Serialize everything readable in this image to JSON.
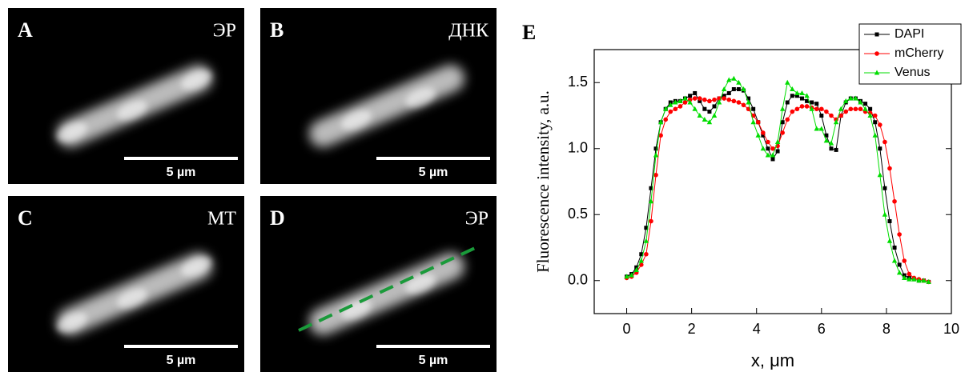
{
  "panels": [
    {
      "letter": "A",
      "label": "ЭР",
      "scale_bar": "5 µm"
    },
    {
      "letter": "B",
      "label": "ДНК",
      "scale_bar": "5 µm"
    },
    {
      "letter": "C",
      "label": "МТ",
      "scale_bar": "5 µm"
    },
    {
      "letter": "D",
      "label": "ЭР",
      "scale_bar": "5 µm"
    }
  ],
  "chart_data": {
    "type": "line",
    "panel_label": "E",
    "x_label": "x, μm",
    "y_label": "Fluorescence intensity, a.u.",
    "x": [
      0,
      0.15,
      0.3,
      0.45,
      0.6,
      0.75,
      0.9,
      1.05,
      1.2,
      1.35,
      1.5,
      1.65,
      1.8,
      1.95,
      2.1,
      2.25,
      2.4,
      2.55,
      2.7,
      2.85,
      3.0,
      3.15,
      3.3,
      3.45,
      3.6,
      3.75,
      3.9,
      4.05,
      4.2,
      4.35,
      4.5,
      4.65,
      4.8,
      4.95,
      5.1,
      5.25,
      5.4,
      5.55,
      5.7,
      5.85,
      6.0,
      6.15,
      6.3,
      6.45,
      6.6,
      6.75,
      6.9,
      7.05,
      7.2,
      7.35,
      7.5,
      7.65,
      7.8,
      7.95,
      8.1,
      8.25,
      8.4,
      8.55,
      8.7,
      8.85,
      9.0,
      9.15,
      9.3
    ],
    "series": [
      {
        "name": "DAPI",
        "color": "#000000",
        "marker": "square",
        "values": [
          0.03,
          0.05,
          0.1,
          0.2,
          0.4,
          0.7,
          1.0,
          1.2,
          1.3,
          1.35,
          1.36,
          1.36,
          1.38,
          1.4,
          1.42,
          1.36,
          1.3,
          1.28,
          1.32,
          1.38,
          1.4,
          1.42,
          1.45,
          1.45,
          1.44,
          1.38,
          1.3,
          1.2,
          1.1,
          1.0,
          0.92,
          0.98,
          1.2,
          1.35,
          1.4,
          1.4,
          1.38,
          1.36,
          1.35,
          1.34,
          1.25,
          1.1,
          1.0,
          0.99,
          1.25,
          1.35,
          1.38,
          1.38,
          1.36,
          1.34,
          1.3,
          1.2,
          1.0,
          0.7,
          0.45,
          0.25,
          0.12,
          0.04,
          0.02,
          0.01,
          0.0,
          0.0,
          -0.01
        ]
      },
      {
        "name": "mCherry",
        "color": "#ff0000",
        "marker": "circle",
        "values": [
          0.02,
          0.03,
          0.06,
          0.12,
          0.2,
          0.45,
          0.8,
          1.1,
          1.22,
          1.28,
          1.3,
          1.32,
          1.35,
          1.37,
          1.38,
          1.38,
          1.37,
          1.36,
          1.37,
          1.38,
          1.38,
          1.37,
          1.36,
          1.35,
          1.33,
          1.3,
          1.25,
          1.2,
          1.12,
          1.05,
          1.0,
          1.02,
          1.12,
          1.22,
          1.28,
          1.3,
          1.32,
          1.32,
          1.31,
          1.3,
          1.3,
          1.28,
          1.25,
          1.22,
          1.25,
          1.28,
          1.3,
          1.3,
          1.3,
          1.28,
          1.27,
          1.25,
          1.18,
          1.05,
          0.85,
          0.6,
          0.35,
          0.15,
          0.05,
          0.02,
          0.01,
          0.0,
          -0.01
        ]
      },
      {
        "name": "Venus",
        "color": "#00dd00",
        "marker": "triangle",
        "values": [
          0.03,
          0.04,
          0.08,
          0.15,
          0.3,
          0.6,
          0.95,
          1.2,
          1.3,
          1.33,
          1.35,
          1.36,
          1.38,
          1.35,
          1.3,
          1.25,
          1.22,
          1.2,
          1.25,
          1.35,
          1.45,
          1.52,
          1.53,
          1.5,
          1.45,
          1.35,
          1.2,
          1.1,
          1.0,
          0.95,
          0.95,
          1.05,
          1.3,
          1.5,
          1.45,
          1.42,
          1.42,
          1.4,
          1.3,
          1.15,
          1.15,
          1.06,
          1.04,
          1.2,
          1.3,
          1.36,
          1.38,
          1.38,
          1.35,
          1.3,
          1.25,
          1.1,
          0.8,
          0.5,
          0.3,
          0.15,
          0.06,
          0.02,
          0.01,
          0.01,
          0.0,
          0.0,
          -0.01
        ]
      }
    ],
    "xlim": [
      -1,
      10
    ],
    "xticks": [
      0,
      2,
      4,
      6,
      8,
      10
    ],
    "ylim": [
      -0.25,
      1.75
    ],
    "yticks": [
      {
        "value": 0,
        "label": "0.0"
      },
      0.5,
      {
        "value": 1,
        "label": "1.0"
      },
      1.5
    ],
    "legend": "upper right"
  }
}
